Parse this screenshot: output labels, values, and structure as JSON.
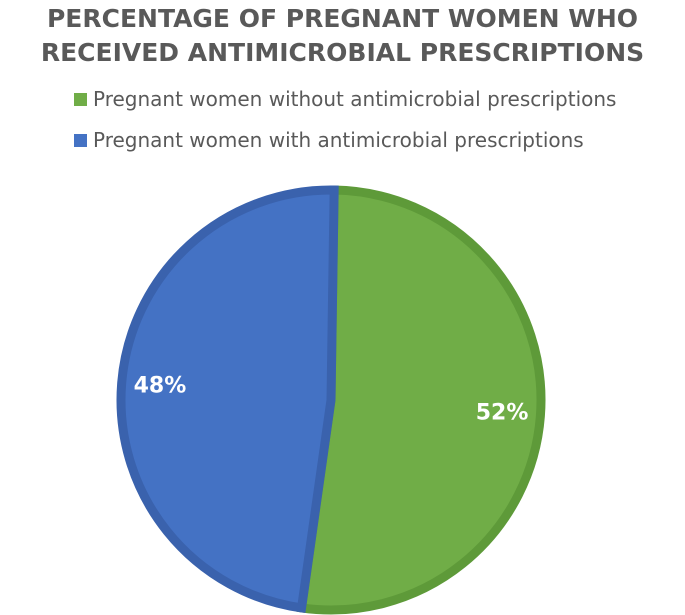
{
  "chart_data": {
    "type": "pie",
    "title": "PERCENTAGE OF PREGNANT WOMEN WHO RECEIVED ANTIMICROBIAL PRESCRIPTIONS",
    "categories": [
      "Pregnant women without antimicrobial prescriptions",
      "Pregnant women with antimicrobial prescriptions"
    ],
    "values": [
      52,
      48
    ],
    "data_labels": [
      "52%",
      "48%"
    ],
    "colors": [
      "#70ad47",
      "#4472c4"
    ],
    "edge_colors": [
      "#5e9a39",
      "#3a62ad"
    ],
    "legend_position": "top-left"
  }
}
